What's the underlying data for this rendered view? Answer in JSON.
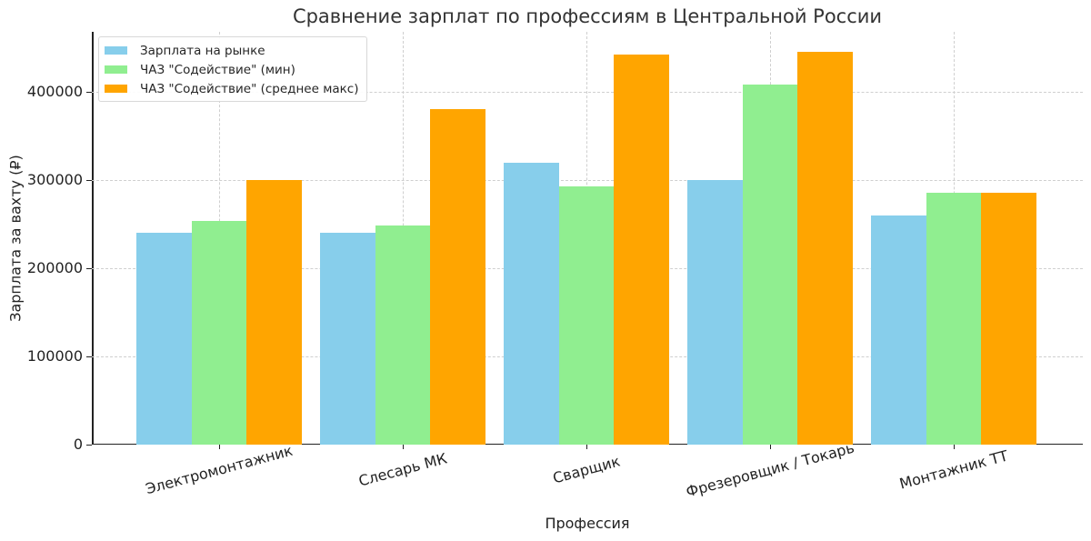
{
  "chart_data": {
    "type": "bar",
    "title": "Сравнение зарплат по профессиям в Центральной России",
    "xlabel": "Профессия",
    "ylabel": "Зарплата за вахту (₽)",
    "ylim": [
      0,
      468000
    ],
    "yticks": [
      "0",
      "100000",
      "200000",
      "300000",
      "400000"
    ],
    "grid": true,
    "legend_position": "upper left",
    "categories": [
      "Электромонтажник",
      "Слесарь МК",
      "Сварщик",
      "Фрезеровщик / Токарь",
      "Монтажник ТТ"
    ],
    "series": [
      {
        "name": "Зарплата на рынке",
        "color": "#87ceeb",
        "values": [
          240000,
          240000,
          320000,
          300000,
          260000
        ]
      },
      {
        "name": "ЧАЗ \"Содействие\" (мин)",
        "color": "#90ee90",
        "values": [
          254000,
          248000,
          292500,
          408000,
          286000
        ]
      },
      {
        "name": "ЧАЗ \"Содействие\" (среднее макс)",
        "color": "#ffa500",
        "values": [
          300000,
          380000,
          442000,
          445000,
          286000
        ]
      }
    ]
  }
}
